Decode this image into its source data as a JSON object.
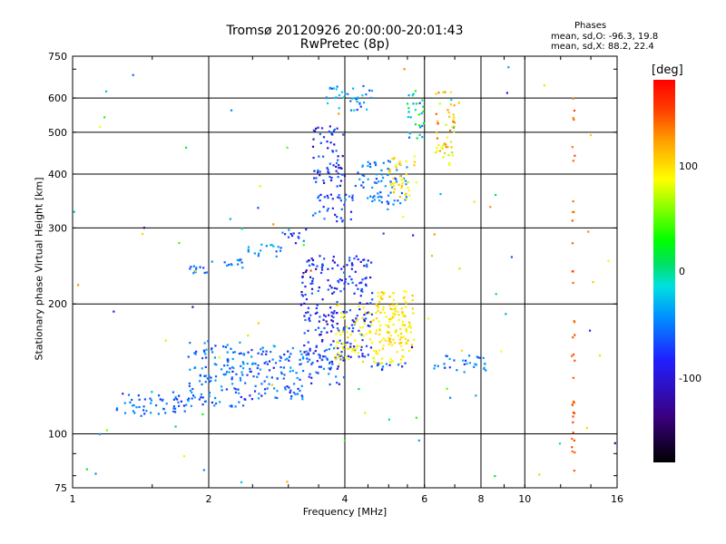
{
  "chart_data": {
    "type": "scatter",
    "title": "Tromsø 20120926 20:00:00-20:01:43",
    "subtitle": "RwPretec (8p)",
    "xlabel": "Frequency [MHz]",
    "ylabel": "Stationary phase Virtual Height [km]",
    "x_scale": "log",
    "y_scale": "log",
    "xlim": [
      1,
      16
    ],
    "ylim": [
      75,
      750
    ],
    "x_ticks": [
      1,
      2,
      4,
      6,
      8,
      10,
      16
    ],
    "y_ticks": [
      75,
      100,
      200,
      300,
      400,
      500,
      600,
      750
    ],
    "x_gridlines": [
      2,
      4,
      6,
      8,
      10,
      16
    ],
    "y_gridlines": [
      100,
      200,
      300,
      400,
      500,
      600,
      750
    ],
    "grid": true,
    "color_scale": {
      "label": "[deg]",
      "ticks": [
        100,
        0,
        -100
      ]
    },
    "stats_box": {
      "heading": "Phases",
      "line1": "mean, sd,O: -96.3, 19.8",
      "line2": "mean, sd,X: 88.2, 22.4"
    },
    "clusters": [
      {
        "x": [
          1.25,
          1.8
        ],
        "y": [
          110,
          125
        ],
        "phase": [
          -110,
          -80
        ]
      },
      {
        "x": [
          1.8,
          2.4
        ],
        "y": [
          115,
          165
        ],
        "phase": [
          -110,
          -70
        ]
      },
      {
        "x": [
          2.4,
          3.3
        ],
        "y": [
          120,
          160
        ],
        "phase": [
          -115,
          -75
        ]
      },
      {
        "x": [
          3.3,
          4.0
        ],
        "y": [
          130,
          160
        ],
        "phase": [
          -120,
          -80
        ]
      },
      {
        "x": [
          3.2,
          3.9
        ],
        "y": [
          150,
          260
        ],
        "phase": [
          -125,
          -90
        ]
      },
      {
        "x": [
          3.9,
          4.6
        ],
        "y": [
          150,
          260
        ],
        "phase": [
          -120,
          -90
        ]
      },
      {
        "x": [
          3.8,
          5.6
        ],
        "y": [
          145,
          200
        ],
        "phase": [
          80,
          110
        ]
      },
      {
        "x": [
          4.7,
          5.7
        ],
        "y": [
          160,
          215
        ],
        "phase": [
          90,
          120
        ]
      },
      {
        "x": [
          4.5,
          5.6
        ],
        "y": [
          140,
          146
        ],
        "phase": [
          -115,
          -85
        ]
      },
      {
        "x": [
          6.2,
          8.2
        ],
        "y": [
          139,
          152
        ],
        "phase": [
          -110,
          -70
        ]
      },
      {
        "x": [
          1.8,
          2.0
        ],
        "y": [
          235,
          245
        ],
        "phase": [
          -105,
          -80
        ]
      },
      {
        "x": [
          2.0,
          2.4
        ],
        "y": [
          240,
          255
        ],
        "phase": [
          -100,
          -70
        ]
      },
      {
        "x": [
          2.4,
          2.9
        ],
        "y": [
          255,
          275
        ],
        "phase": [
          -100,
          -60
        ]
      },
      {
        "x": [
          2.9,
          3.3
        ],
        "y": [
          275,
          300
        ],
        "phase": [
          -120,
          -80
        ]
      },
      {
        "x": [
          3.4,
          4.2
        ],
        "y": [
          310,
          360
        ],
        "phase": [
          -115,
          -85
        ]
      },
      {
        "x": [
          4.2,
          5.5
        ],
        "y": [
          340,
          430
        ],
        "phase": [
          -105,
          -70
        ]
      },
      {
        "x": [
          3.4,
          4.0
        ],
        "y": [
          370,
          520
        ],
        "phase": [
          -125,
          -90
        ]
      },
      {
        "x": [
          5.0,
          5.8
        ],
        "y": [
          350,
          440
        ],
        "phase": [
          80,
          120
        ]
      },
      {
        "x": [
          5.5,
          6.0
        ],
        "y": [
          480,
          640
        ],
        "phase": [
          -110,
          20
        ]
      },
      {
        "x": [
          6.3,
          7.0
        ],
        "y": [
          420,
          620
        ],
        "phase": [
          60,
          150
        ]
      },
      {
        "x": [
          3.6,
          4.6
        ],
        "y": [
          560,
          640
        ],
        "phase": [
          -110,
          -40
        ]
      },
      {
        "x": [
          12.7,
          12.9
        ],
        "y": [
          80,
          620
        ],
        "phase": [
          140,
          160
        ]
      },
      {
        "x": [
          1.0,
          16.0
        ],
        "y": [
          76,
          720
        ],
        "phase": [
          -130,
          160
        ]
      }
    ]
  }
}
